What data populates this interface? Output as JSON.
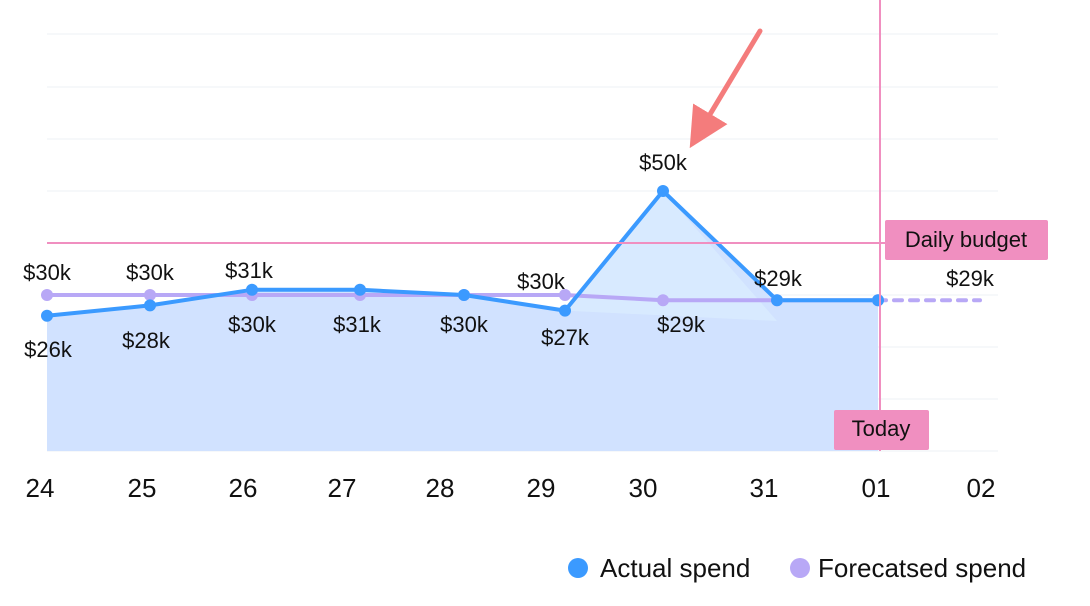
{
  "chart_data": {
    "type": "line",
    "categories": [
      "24",
      "25",
      "26",
      "27",
      "28",
      "29",
      "30",
      "31",
      "01",
      "02"
    ],
    "series": [
      {
        "name": "Actual spend",
        "color": "#3b9aff",
        "fill_color": "#cfe0ff",
        "peak_fill_color": "#d8ebff",
        "values": [
          26,
          28,
          31,
          31,
          30,
          27,
          50,
          29,
          29,
          null
        ],
        "labels": [
          "$26k",
          "$28k",
          "$31k",
          "$31k",
          "$30k",
          "$27k",
          "$50k",
          "$29k",
          null,
          null
        ]
      },
      {
        "name": "Forecatsed spend",
        "color": "#b8a8f6",
        "values": [
          30,
          30,
          30,
          30,
          30,
          30,
          29,
          29,
          29,
          29
        ],
        "labels": [
          "$30k",
          "$30k",
          "$30k",
          null,
          null,
          "$30k",
          "$29k",
          null,
          null,
          "$29k"
        ]
      }
    ],
    "ylim": [
      0,
      80
    ],
    "grid": true,
    "legend": {
      "position": "bottom-right",
      "items": [
        {
          "label": "Actual spend",
          "color": "#3b9aff"
        },
        {
          "label": "Forecatsed spend",
          "color": "#b8a8f6"
        }
      ]
    },
    "annotations": [
      {
        "label": "Daily budget",
        "type": "horizontal-line",
        "y": 40,
        "color": "#f08fc0"
      },
      {
        "label": "Today",
        "type": "vertical-line",
        "x": "01",
        "color": "#f08fc0"
      },
      {
        "type": "arrow",
        "target": "30",
        "color": "#f47c7c"
      }
    ]
  }
}
